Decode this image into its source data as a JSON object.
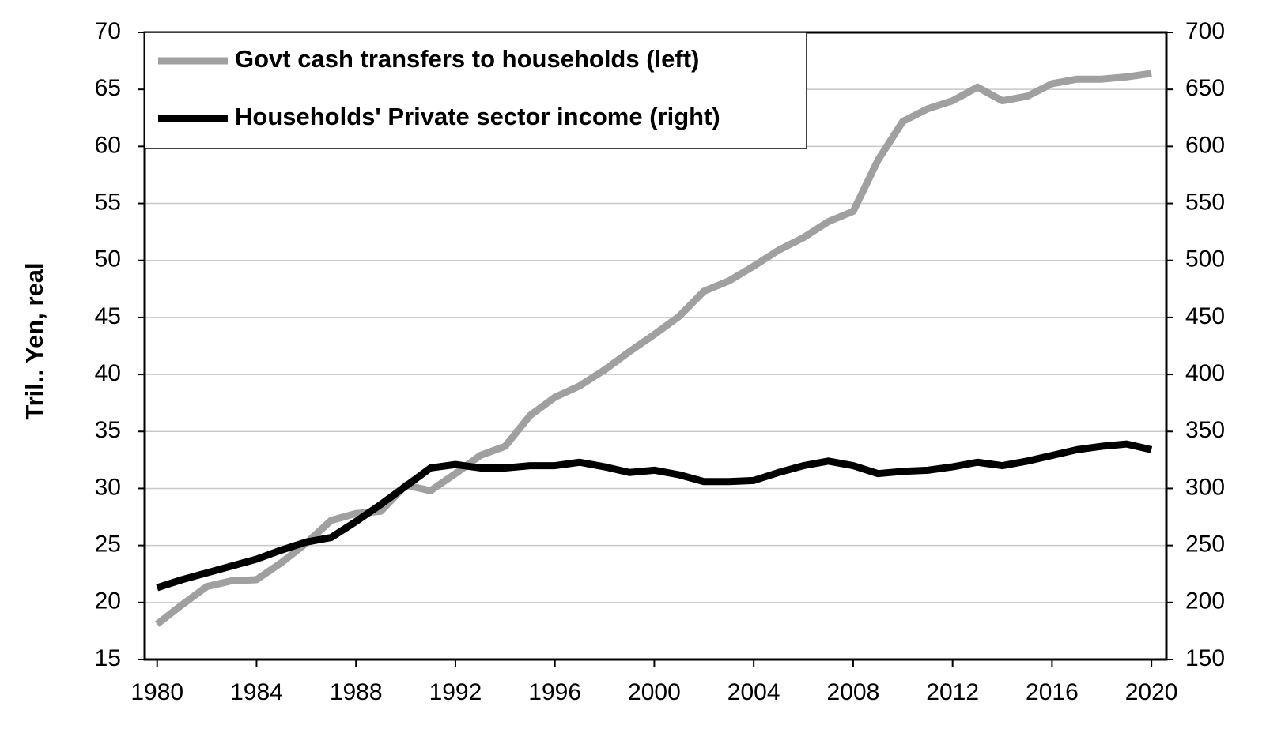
{
  "chart_data": {
    "type": "line",
    "y_label": "Tril.. Yen, real",
    "x": [
      1980,
      1981,
      1982,
      1983,
      1984,
      1985,
      1986,
      1987,
      1988,
      1989,
      1990,
      1991,
      1992,
      1993,
      1994,
      1995,
      1996,
      1997,
      1998,
      1999,
      2000,
      2001,
      2002,
      2003,
      2004,
      2005,
      2006,
      2007,
      2008,
      2009,
      2010,
      2011,
      2012,
      2013,
      2014,
      2015,
      2016,
      2017,
      2018,
      2019,
      2020
    ],
    "series": [
      {
        "name": "Govt cash transfers to households (left)",
        "color": "#a0a0a0",
        "axis": "y",
        "values": [
          18.1,
          19.8,
          21.4,
          21.9,
          22.0,
          23.5,
          25.2,
          27.2,
          27.8,
          28.0,
          30.3,
          29.8,
          31.3,
          32.9,
          33.7,
          36.4,
          38.0,
          39.0,
          40.4,
          42.0,
          43.5,
          45.1,
          47.3,
          48.2,
          49.5,
          50.9,
          52.0,
          53.4,
          54.3,
          58.8,
          62.2,
          63.3,
          64.0,
          65.2,
          64.0,
          64.4,
          65.5,
          65.9,
          65.9,
          66.1,
          66.4
        ]
      },
      {
        "name": "Households' Private sector income (right)",
        "color": "#000000",
        "axis": "y2",
        "values": [
          213,
          220,
          226,
          232,
          238,
          246,
          253,
          257,
          271,
          286,
          302,
          318,
          321,
          318,
          318,
          320,
          320,
          323,
          319,
          314,
          316,
          312,
          306,
          306,
          307,
          314,
          320,
          324,
          320,
          313,
          315,
          316,
          319,
          323,
          320,
          324,
          329,
          334,
          337,
          339,
          334
        ]
      }
    ],
    "xlim": [
      1979.5,
      2020.6
    ],
    "xticks": [
      1980,
      1984,
      1988,
      1992,
      1996,
      2000,
      2004,
      2008,
      2012,
      2016,
      2020
    ],
    "ylim": [
      15,
      70
    ],
    "yticks": [
      15,
      20,
      25,
      30,
      35,
      40,
      45,
      50,
      55,
      60,
      65,
      70
    ],
    "y2lim": [
      150,
      700
    ],
    "y2ticks": [
      150,
      200,
      250,
      300,
      350,
      400,
      450,
      500,
      550,
      600,
      650,
      700
    ],
    "grid": true,
    "legend": "upper left"
  }
}
